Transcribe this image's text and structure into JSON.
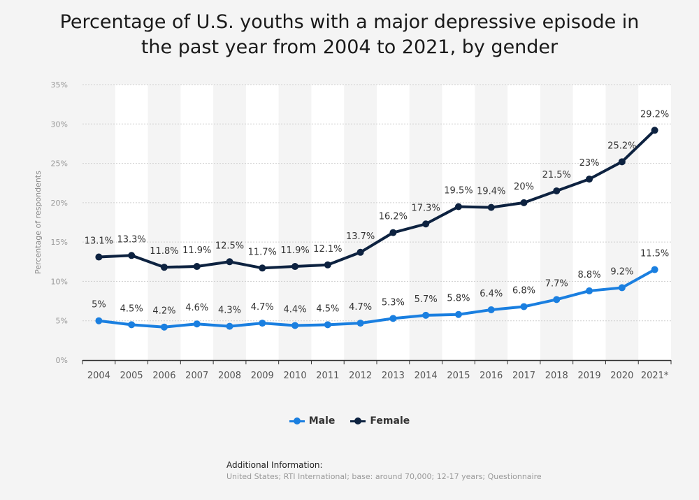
{
  "title_line1": "Percentage of U.S. youths with a major depressive episode in",
  "title_line2": "the past year from 2004 to 2021, by gender",
  "additional_info_title": "Additional Information:",
  "additional_info_text": "United States; RTI International; base: around 70,000; 12-17 years; Questionnaire",
  "chart_data": {
    "type": "line",
    "title": "Percentage of U.S. youths with a major depressive episode in the past year from 2004 to 2021, by gender",
    "xlabel": "",
    "ylabel": "Percentage of respondents",
    "categories": [
      "2004",
      "2005",
      "2006",
      "2007",
      "2008",
      "2009",
      "2010",
      "2011",
      "2012",
      "2013",
      "2014",
      "2015",
      "2016",
      "2017",
      "2018",
      "2019",
      "2020",
      "2021*"
    ],
    "ylim": [
      0,
      35
    ],
    "yticks": [
      "0%",
      "5%",
      "10%",
      "15%",
      "20%",
      "25%",
      "30%",
      "35%"
    ],
    "grid": true,
    "legend_position": "bottom",
    "series": [
      {
        "name": "Male",
        "color": "#1a7fe0",
        "values": [
          5,
          4.5,
          4.2,
          4.6,
          4.3,
          4.7,
          4.4,
          4.5,
          4.7,
          5.3,
          5.7,
          5.8,
          6.4,
          6.8,
          7.7,
          8.8,
          9.2,
          11.5
        ],
        "labels": [
          "5%",
          "4.5%",
          "4.2%",
          "4.6%",
          "4.3%",
          "4.7%",
          "4.4%",
          "4.5%",
          "4.7%",
          "5.3%",
          "5.7%",
          "5.8%",
          "6.4%",
          "6.8%",
          "7.7%",
          "8.8%",
          "9.2%",
          "11.5%"
        ]
      },
      {
        "name": "Female",
        "color": "#0d2240",
        "values": [
          13.1,
          13.3,
          11.8,
          11.9,
          12.5,
          11.7,
          11.9,
          12.1,
          13.7,
          16.2,
          17.3,
          19.5,
          19.4,
          20,
          21.5,
          23,
          25.2,
          29.2
        ],
        "labels": [
          "13.1%",
          "13.3%",
          "11.8%",
          "11.9%",
          "12.5%",
          "11.7%",
          "11.9%",
          "12.1%",
          "13.7%",
          "16.2%",
          "17.3%",
          "19.5%",
          "19.4%",
          "20%",
          "21.5%",
          "23%",
          "25.2%",
          "29.2%"
        ]
      }
    ]
  }
}
